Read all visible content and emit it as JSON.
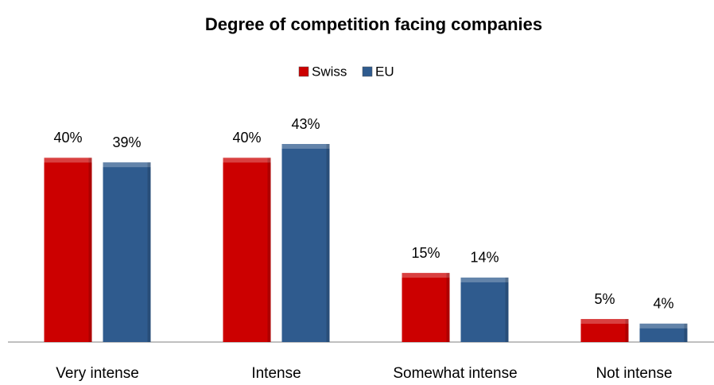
{
  "chart_data": {
    "type": "bar",
    "title": "Degree of competition facing companies",
    "categories": [
      "Very intense",
      "Intense",
      "Somewhat intense",
      "Not intense"
    ],
    "series": [
      {
        "name": "Swiss",
        "color": "#cc0000",
        "values": [
          40,
          40,
          15,
          5
        ],
        "value_labels": [
          "40%",
          "40%",
          "15%",
          "5%"
        ]
      },
      {
        "name": "EU",
        "color": "#2f5b8e",
        "values": [
          39,
          43,
          14,
          4
        ],
        "value_labels": [
          "39%",
          "43%",
          "14%",
          "4%"
        ]
      }
    ],
    "legend": "top"
  }
}
